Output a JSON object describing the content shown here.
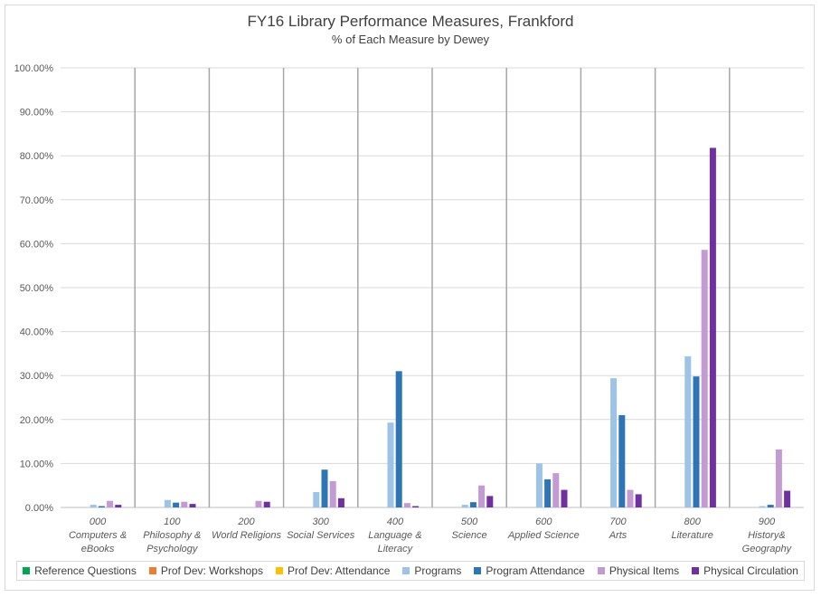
{
  "chart_data": {
    "type": "bar",
    "title": "FY16 Library Performance Measures, Frankford",
    "subtitle": "% of Each Measure by Dewey",
    "xlabel": "",
    "ylabel": "",
    "ylim": [
      0,
      100
    ],
    "y_ticks": [
      "0.00%",
      "10.00%",
      "20.00%",
      "30.00%",
      "40.00%",
      "50.00%",
      "60.00%",
      "70.00%",
      "80.00%",
      "90.00%",
      "100.00%"
    ],
    "categories": [
      [
        "000",
        "Computers &",
        "eBooks"
      ],
      [
        "100",
        "Philosophy &",
        "Psychology"
      ],
      [
        "200",
        "World Religions"
      ],
      [
        "300",
        "Social Services"
      ],
      [
        "400",
        "Language &",
        "Literacy"
      ],
      [
        "500",
        "Science"
      ],
      [
        "600",
        "Applied Science"
      ],
      [
        "700",
        "Arts"
      ],
      [
        "800",
        "Literature"
      ],
      [
        "900",
        "History&",
        "Geography"
      ]
    ],
    "legend_position": "bottom",
    "series": [
      {
        "name": "Reference Questions",
        "color": "#00a651",
        "values": [
          0,
          0,
          0,
          0,
          0,
          0,
          0,
          0,
          0,
          0
        ]
      },
      {
        "name": "Prof Dev: Workshops",
        "color": "#ed7d31",
        "values": [
          0,
          0,
          0,
          0,
          0,
          0,
          0,
          0,
          0,
          0
        ]
      },
      {
        "name": "Prof Dev: Attendance",
        "color": "#ffc000",
        "values": [
          0,
          0,
          0,
          0,
          0,
          0,
          0,
          0,
          0,
          0
        ]
      },
      {
        "name": "Programs",
        "color": "#9dc3e6",
        "values": [
          0.6,
          1.7,
          0,
          3.5,
          19.3,
          0.6,
          10.0,
          29.4,
          34.4,
          0.3
        ]
      },
      {
        "name": "Program Attendance",
        "color": "#2e75b6",
        "values": [
          0.3,
          1.1,
          0,
          8.6,
          31.0,
          1.2,
          6.4,
          21.0,
          29.8,
          0.6
        ]
      },
      {
        "name": "Physical Items",
        "color": "#c39bd3",
        "values": [
          1.5,
          1.3,
          1.5,
          6.0,
          1.0,
          5.0,
          7.8,
          4.0,
          58.6,
          13.2
        ]
      },
      {
        "name": "Physical Circulation",
        "color": "#7030a0",
        "values": [
          0.6,
          0.8,
          1.3,
          2.1,
          0.3,
          2.6,
          4.0,
          3.0,
          81.8,
          3.8
        ]
      }
    ]
  }
}
